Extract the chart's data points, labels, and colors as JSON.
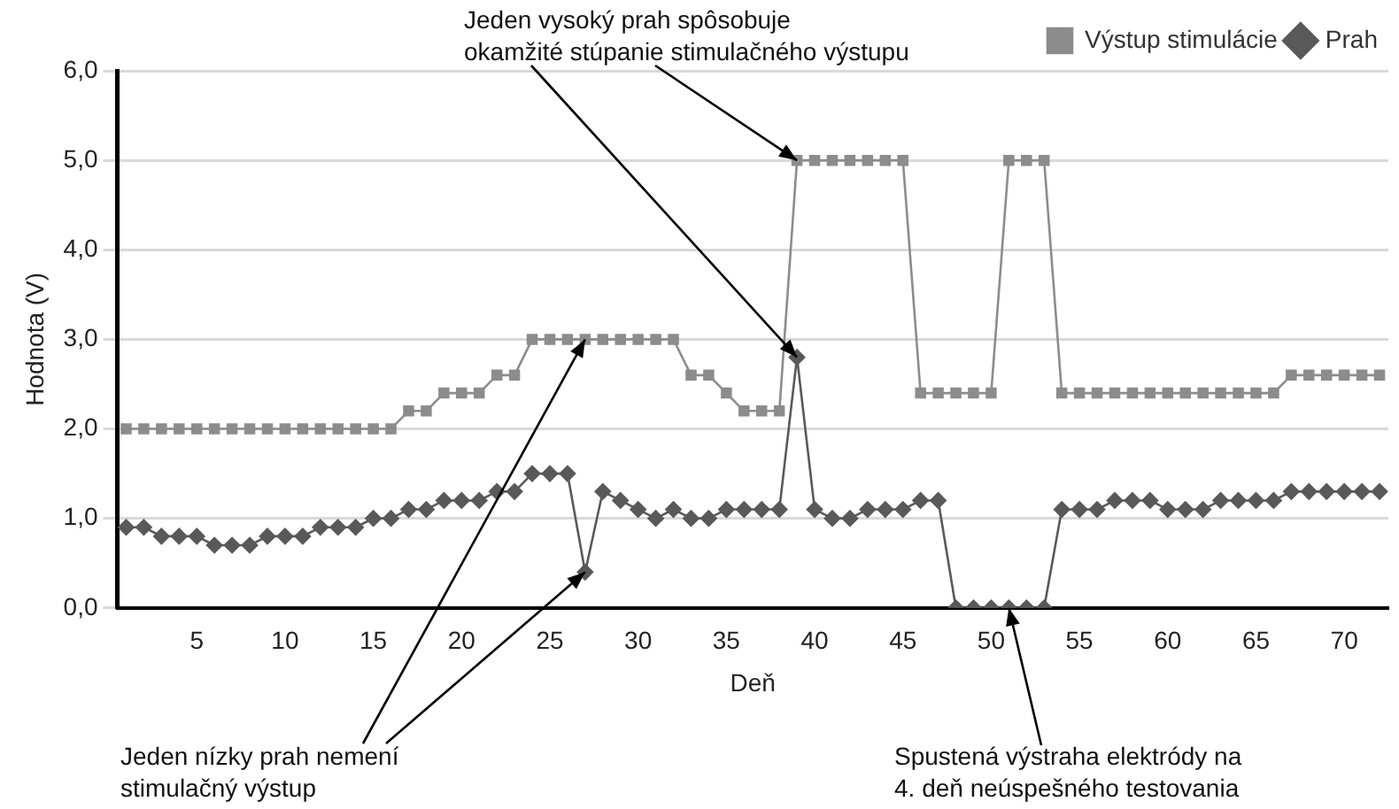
{
  "chart_data": {
    "type": "line",
    "xlabel": "Deň",
    "ylabel": "Hodnota (V)",
    "x": [
      1,
      2,
      3,
      4,
      5,
      6,
      7,
      8,
      9,
      10,
      11,
      12,
      13,
      14,
      15,
      16,
      17,
      18,
      19,
      20,
      21,
      22,
      23,
      24,
      25,
      26,
      27,
      28,
      29,
      30,
      31,
      32,
      33,
      34,
      35,
      36,
      37,
      38,
      39,
      40,
      41,
      42,
      43,
      44,
      45,
      46,
      47,
      48,
      49,
      50,
      51,
      52,
      53,
      54,
      55,
      56,
      57,
      58,
      59,
      60,
      61,
      62,
      63,
      64,
      65,
      66,
      67,
      68,
      69,
      70,
      71,
      72
    ],
    "series": [
      {
        "name": "Výstup stimulácie",
        "color": "#8c8c8c",
        "marker": "square",
        "values": [
          2.0,
          2.0,
          2.0,
          2.0,
          2.0,
          2.0,
          2.0,
          2.0,
          2.0,
          2.0,
          2.0,
          2.0,
          2.0,
          2.0,
          2.0,
          2.0,
          2.2,
          2.2,
          2.4,
          2.4,
          2.4,
          2.6,
          2.6,
          3.0,
          3.0,
          3.0,
          3.0,
          3.0,
          3.0,
          3.0,
          3.0,
          3.0,
          2.6,
          2.6,
          2.4,
          2.2,
          2.2,
          2.2,
          5.0,
          5.0,
          5.0,
          5.0,
          5.0,
          5.0,
          5.0,
          2.4,
          2.4,
          2.4,
          2.4,
          2.4,
          5.0,
          5.0,
          5.0,
          2.4,
          2.4,
          2.4,
          2.4,
          2.4,
          2.4,
          2.4,
          2.4,
          2.4,
          2.4,
          2.4,
          2.4,
          2.4,
          2.6,
          2.6,
          2.6,
          2.6,
          2.6,
          2.6
        ]
      },
      {
        "name": "Prah",
        "color": "#595959",
        "marker": "diamond",
        "values": [
          0.9,
          0.9,
          0.8,
          0.8,
          0.8,
          0.7,
          0.7,
          0.7,
          0.8,
          0.8,
          0.8,
          0.9,
          0.9,
          0.9,
          1.0,
          1.0,
          1.1,
          1.1,
          1.2,
          1.2,
          1.2,
          1.3,
          1.3,
          1.5,
          1.5,
          1.5,
          0.4,
          1.3,
          1.2,
          1.1,
          1.0,
          1.1,
          1.0,
          1.0,
          1.1,
          1.1,
          1.1,
          1.1,
          2.8,
          1.1,
          1.0,
          1.0,
          1.1,
          1.1,
          1.1,
          1.2,
          1.2,
          0,
          0,
          0,
          0,
          0,
          0,
          1.1,
          1.1,
          1.1,
          1.2,
          1.2,
          1.2,
          1.1,
          1.1,
          1.1,
          1.2,
          1.2,
          1.2,
          1.2,
          1.3,
          1.3,
          1.3,
          1.3,
          1.3,
          1.3
        ]
      }
    ],
    "xlim": [
      0.5,
      72.5
    ],
    "xticks": [
      5,
      10,
      15,
      20,
      25,
      30,
      35,
      40,
      45,
      50,
      55,
      60,
      65,
      70
    ],
    "ylim": [
      0,
      6
    ],
    "yticks": [
      {
        "value": 0,
        "label": "0,0"
      },
      {
        "value": 1,
        "label": "1,0"
      },
      {
        "value": 2,
        "label": "2,0"
      },
      {
        "value": 3,
        "label": "3,0"
      },
      {
        "value": 4,
        "label": "4,0"
      },
      {
        "value": 5,
        "label": "5,0"
      },
      {
        "value": 6,
        "label": "6,0"
      }
    ],
    "grid": "y",
    "legend": "top right",
    "line_style": "solid",
    "annotations": [
      {
        "text": "Jeden vysoký prah spôsobuje\nokamžité stúpanie stimulačného výstupu",
        "x": 39,
        "y": 2.8
      },
      {
        "text": "Jeden nízky prah nemení\nstimulačný výstup",
        "x": 27,
        "y": 0.4
      },
      {
        "text": "Spustená výstraha elektródy na\n4. deň neúspešného testovania",
        "x": 51,
        "y": 0
      }
    ]
  }
}
